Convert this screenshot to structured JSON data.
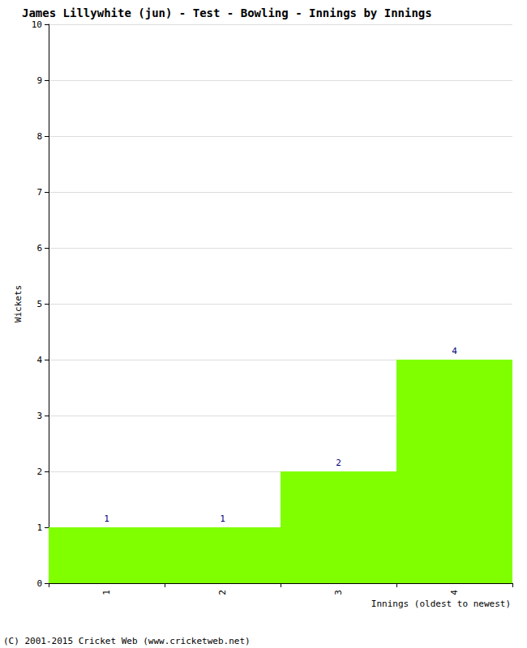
{
  "chart_data": {
    "type": "bar",
    "title": "James Lillywhite (jun) - Test - Bowling - Innings by Innings",
    "x_label": "Innings (oldest to newest)",
    "y_label": "Wickets",
    "footer": "(C) 2001-2015 Cricket Web (www.cricketweb.net)",
    "categories": [
      "1",
      "2",
      "3",
      "4"
    ],
    "values": [
      1,
      1,
      2,
      4
    ],
    "color": "#80ff00",
    "ylim": [
      0,
      10
    ],
    "yticks": [
      0,
      1,
      2,
      3,
      4,
      5,
      6,
      7,
      8,
      9,
      10
    ],
    "grid": true,
    "data_labels": true
  }
}
